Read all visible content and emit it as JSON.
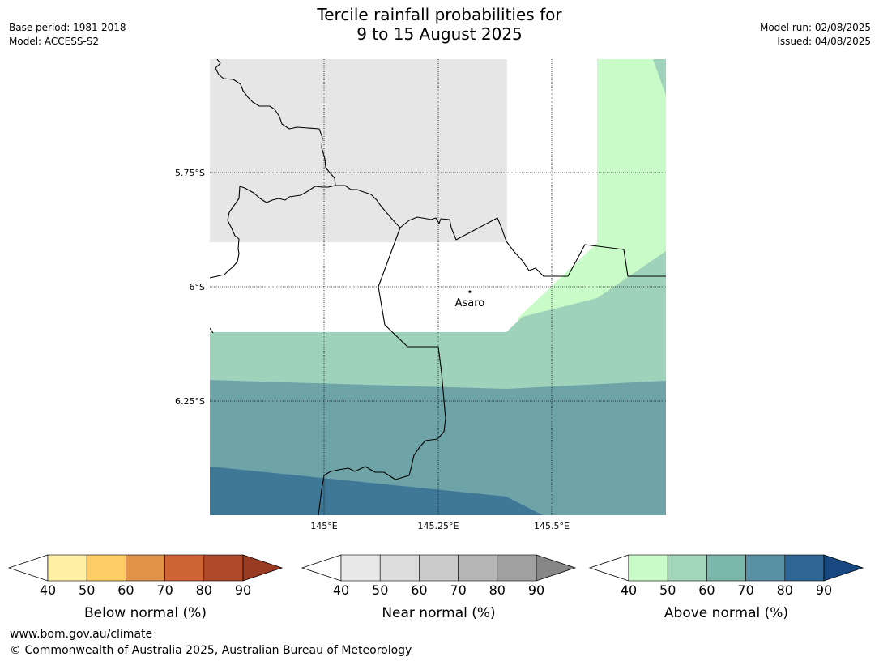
{
  "title": {
    "line1": "Tercile rainfall probabilities for",
    "line2": "9 to 15 August 2025"
  },
  "meta_left": {
    "base_period": "Base period: 1981-2018",
    "model": "Model: ACCESS-S2"
  },
  "meta_right": {
    "model_run": "Model run: 02/08/2025",
    "issued": "Issued: 04/08/2025"
  },
  "map": {
    "lat_labels": [
      "5.75°S",
      "6°S",
      "6.25°S"
    ],
    "lon_labels": [
      "145°E",
      "145.25°E",
      "145.5°E"
    ],
    "place": {
      "name": "Asaro",
      "lon": 145.32,
      "lat": -6.01
    },
    "extent": {
      "lon_min": 144.75,
      "lon_max": 145.75,
      "lat_min": -6.5,
      "lat_max": -5.5
    }
  },
  "colorbars": [
    {
      "id": "below",
      "label": "Below normal (%)",
      "ticks": [
        "40",
        "50",
        "60",
        "70",
        "80",
        "90"
      ],
      "colors": [
        "#fff0a4",
        "#fecb66",
        "#e1934a",
        "#cd6534",
        "#b0492a"
      ],
      "over": "#993a22"
    },
    {
      "id": "near",
      "label": "Near normal (%)",
      "ticks": [
        "40",
        "50",
        "60",
        "70",
        "80",
        "90"
      ],
      "colors": [
        "#e8e8e8",
        "#dcdcdc",
        "#cbcbcb",
        "#b6b6b6",
        "#a0a0a0"
      ],
      "over": "#878787"
    },
    {
      "id": "above",
      "label": "Above normal (%)",
      "ticks": [
        "40",
        "50",
        "60",
        "70",
        "80",
        "90"
      ],
      "colors": [
        "#c9fbc8",
        "#a3d7bb",
        "#7cb7ab",
        "#5790a4",
        "#2e6597"
      ],
      "over": "#18487f"
    }
  ],
  "footer": {
    "url": "www.bom.gov.au/climate",
    "copyright": "© Commonwealth of Australia 2025, Australian Bureau of Meteorology"
  }
}
